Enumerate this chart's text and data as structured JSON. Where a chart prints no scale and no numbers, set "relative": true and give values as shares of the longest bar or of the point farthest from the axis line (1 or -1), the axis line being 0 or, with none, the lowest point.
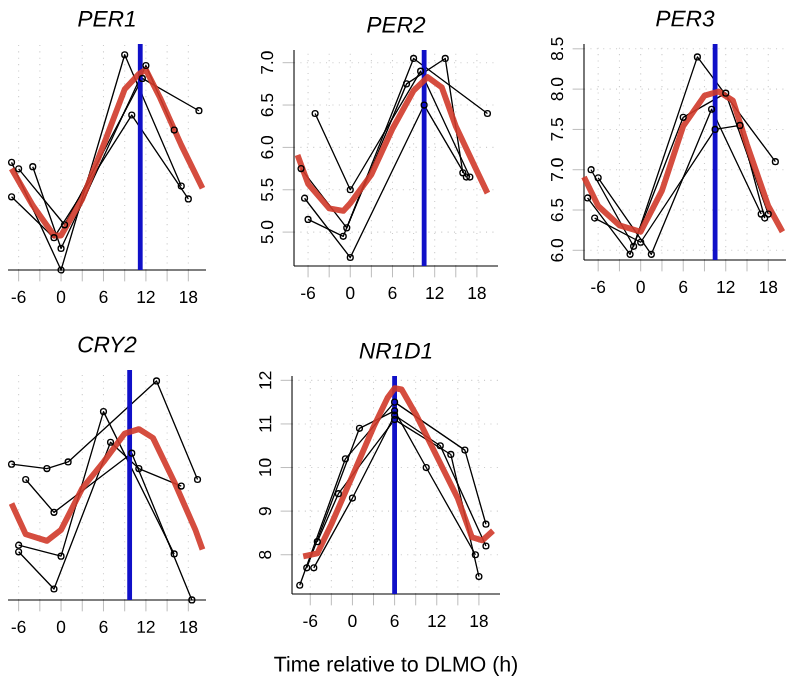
{
  "chart_data": [
    {
      "type": "line",
      "title": "PER1",
      "relative": true,
      "grid": "x",
      "xlim": [
        -7.5,
        20.5
      ],
      "xticks": [
        {
          "value": -6,
          "label": "-6"
        },
        {
          "value": -3,
          "label": null
        },
        {
          "value": 0,
          "label": "0"
        },
        {
          "value": 3,
          "label": null
        },
        {
          "value": 6,
          "label": "6"
        },
        {
          "value": 9,
          "label": null
        },
        {
          "value": 12,
          "label": "12"
        },
        {
          "value": 15,
          "label": null
        },
        {
          "value": 18,
          "label": "18"
        }
      ],
      "ref_lines": [
        {
          "axis": "x",
          "value": 11.2,
          "color": "#1010c8"
        }
      ],
      "series": [
        {
          "color": "#000000",
          "marker": "circle",
          "x": [
            -7,
            0,
            9,
            17
          ],
          "values": [
            0.5,
            0,
            1,
            0.39
          ]
        },
        {
          "color": "#000000",
          "marker": "circle",
          "x": [
            -6,
            0.5,
            11.5,
            19.5
          ],
          "values": [
            0.47,
            0.21,
            0.89,
            0.74
          ]
        },
        {
          "color": "#000000",
          "marker": "circle",
          "x": [
            -7,
            -1,
            10,
            18
          ],
          "values": [
            0.34,
            0.15,
            0.72,
            0.33
          ]
        },
        {
          "color": "#000000",
          "marker": "circle",
          "x": [
            -4,
            0,
            12,
            16
          ],
          "values": [
            0.48,
            0.1,
            0.95,
            0.65
          ]
        },
        {
          "color": "#d03a2a",
          "marker": "none",
          "x": [
            -7,
            -4,
            -1,
            0,
            3,
            6,
            9,
            11,
            12,
            14,
            17,
            20
          ],
          "values": [
            0.47,
            0.3,
            0.16,
            0.16,
            0.33,
            0.58,
            0.84,
            0.91,
            0.93,
            0.8,
            0.58,
            0.38
          ]
        }
      ]
    },
    {
      "type": "line",
      "title": "PER2",
      "grid": true,
      "xlim": [
        -8,
        21
      ],
      "ylim": [
        4.6,
        7.15
      ],
      "xticks": [
        {
          "value": -6,
          "label": "-6"
        },
        {
          "value": -3,
          "label": null
        },
        {
          "value": 0,
          "label": "0"
        },
        {
          "value": 3,
          "label": null
        },
        {
          "value": 6,
          "label": "6"
        },
        {
          "value": 9,
          "label": null
        },
        {
          "value": 12,
          "label": "12"
        },
        {
          "value": 15,
          "label": null
        },
        {
          "value": 18,
          "label": "18"
        }
      ],
      "yticks": [
        {
          "value": 5,
          "label": "5.0"
        },
        {
          "value": 5.5,
          "label": "5.5"
        },
        {
          "value": 6,
          "label": "6.0"
        },
        {
          "value": 6.5,
          "label": "6.5"
        },
        {
          "value": 7,
          "label": "7.0"
        }
      ],
      "ref_lines": [
        {
          "axis": "x",
          "value": 10.5,
          "color": "#1010c8"
        }
      ],
      "series": [
        {
          "color": "#000000",
          "marker": "circle",
          "x": [
            -5,
            0,
            10,
            17
          ],
          "values": [
            6.4,
            5.5,
            6.9,
            5.65
          ]
        },
        {
          "color": "#000000",
          "marker": "circle",
          "x": [
            -7,
            -0.5,
            9,
            19.5
          ],
          "values": [
            5.75,
            5.05,
            7.05,
            6.4
          ]
        },
        {
          "color": "#000000",
          "marker": "circle",
          "x": [
            -6.5,
            0,
            10.5,
            16.5
          ],
          "values": [
            5.4,
            4.7,
            6.5,
            5.65
          ]
        },
        {
          "color": "#000000",
          "marker": "circle",
          "x": [
            -6,
            -1,
            8,
            13.5,
            16
          ],
          "values": [
            5.15,
            4.95,
            6.75,
            7.05,
            5.7
          ]
        },
        {
          "color": "#d03a2a",
          "marker": "none",
          "x": [
            -7.5,
            -6,
            -3,
            -1,
            0,
            3,
            6,
            9,
            11,
            13,
            15,
            18,
            19.5
          ],
          "values": [
            5.91,
            5.57,
            5.28,
            5.25,
            5.34,
            5.68,
            6.22,
            6.67,
            6.83,
            6.71,
            6.25,
            5.72,
            5.46
          ]
        }
      ]
    },
    {
      "type": "line",
      "title": "PER3",
      "grid": true,
      "xlim": [
        -8,
        20.5
      ],
      "ylim": [
        5.88,
        8.56
      ],
      "xticks": [
        {
          "value": -6,
          "label": "-6"
        },
        {
          "value": -3,
          "label": null
        },
        {
          "value": 0,
          "label": "0"
        },
        {
          "value": 3,
          "label": null
        },
        {
          "value": 6,
          "label": "6"
        },
        {
          "value": 9,
          "label": null
        },
        {
          "value": 12,
          "label": "12"
        },
        {
          "value": 15,
          "label": null
        },
        {
          "value": 18,
          "label": "18"
        }
      ],
      "yticks": [
        {
          "value": 6,
          "label": "6.0"
        },
        {
          "value": 6.5,
          "label": "6.5"
        },
        {
          "value": 7,
          "label": "7.0"
        },
        {
          "value": 7.5,
          "label": "7.5"
        },
        {
          "value": 8,
          "label": "8.0"
        },
        {
          "value": 8.5,
          "label": "8.5"
        }
      ],
      "ref_lines": [
        {
          "axis": "x",
          "value": 10.5,
          "color": "#1010c8"
        }
      ],
      "series": [
        {
          "color": "#000000",
          "marker": "circle",
          "x": [
            -7,
            -1,
            8,
            19
          ],
          "values": [
            7.0,
            6.05,
            8.4,
            7.1
          ]
        },
        {
          "color": "#000000",
          "marker": "circle",
          "x": [
            -6,
            1.5,
            10,
            17
          ],
          "values": [
            6.9,
            5.95,
            7.75,
            6.45
          ]
        },
        {
          "color": "#000000",
          "marker": "circle",
          "x": [
            -7.5,
            -1.5,
            6,
            12,
            18
          ],
          "values": [
            6.65,
            5.95,
            7.65,
            7.95,
            6.45
          ]
        },
        {
          "color": "#000000",
          "marker": "circle",
          "x": [
            -6.5,
            0,
            10.5,
            14,
            17.5
          ],
          "values": [
            6.4,
            6.1,
            7.5,
            7.55,
            6.4
          ]
        },
        {
          "color": "#d03a2a",
          "marker": "none",
          "x": [
            -8,
            -6,
            -3,
            0,
            3,
            6,
            9,
            11,
            13,
            15,
            18,
            20
          ],
          "values": [
            6.91,
            6.55,
            6.31,
            6.23,
            6.74,
            7.54,
            7.92,
            7.97,
            7.86,
            7.31,
            6.55,
            6.23
          ]
        }
      ]
    },
    {
      "type": "line",
      "title": "CRY2",
      "relative": true,
      "grid": "x",
      "xlim": [
        -7.5,
        20.5
      ],
      "xticks": [
        {
          "value": -6,
          "label": "-6"
        },
        {
          "value": -3,
          "label": null
        },
        {
          "value": 0,
          "label": "0"
        },
        {
          "value": 3,
          "label": null
        },
        {
          "value": 6,
          "label": "6"
        },
        {
          "value": 9,
          "label": null
        },
        {
          "value": 12,
          "label": "12"
        },
        {
          "value": 15,
          "label": null
        },
        {
          "value": 18,
          "label": "18"
        }
      ],
      "ref_lines": [
        {
          "axis": "x",
          "value": 9.7,
          "color": "#1010c8"
        }
      ],
      "series": [
        {
          "color": "#000000",
          "marker": "circle",
          "x": [
            -7,
            -2,
            1,
            13.5,
            19.3
          ],
          "values": [
            0.62,
            0.6,
            0.63,
            1,
            0.55
          ]
        },
        {
          "color": "#000000",
          "marker": "circle",
          "x": [
            -6,
            0,
            6,
            16
          ],
          "values": [
            0.25,
            0.2,
            0.86,
            0.21
          ]
        },
        {
          "color": "#000000",
          "marker": "circle",
          "x": [
            -5,
            -1,
            10,
            18.5
          ],
          "values": [
            0.55,
            0.4,
            0.67,
            0
          ]
        },
        {
          "color": "#000000",
          "marker": "circle",
          "x": [
            -6,
            -1,
            7,
            11,
            17
          ],
          "values": [
            0.22,
            0.05,
            0.72,
            0.6,
            0.52
          ]
        },
        {
          "color": "#d03a2a",
          "marker": "none",
          "x": [
            -7,
            -5,
            -2,
            0,
            3,
            6,
            9,
            11,
            13,
            16,
            19,
            20
          ],
          "values": [
            0.44,
            0.3,
            0.27,
            0.32,
            0.51,
            0.63,
            0.76,
            0.78,
            0.74,
            0.54,
            0.32,
            0.23
          ]
        }
      ]
    },
    {
      "type": "line",
      "title": "NR1D1",
      "xlabel": "Time relative to DLMO (h)",
      "grid": true,
      "xlim": [
        -8.6,
        21
      ],
      "ylim": [
        7.1,
        12.1
      ],
      "xticks": [
        {
          "value": -6,
          "label": "-6"
        },
        {
          "value": -3,
          "label": null
        },
        {
          "value": 0,
          "label": "0"
        },
        {
          "value": 3,
          "label": null
        },
        {
          "value": 6,
          "label": "6"
        },
        {
          "value": 9,
          "label": null
        },
        {
          "value": 12,
          "label": "12"
        },
        {
          "value": 15,
          "label": null
        },
        {
          "value": 18,
          "label": "18"
        }
      ],
      "yticks": [
        8,
        9,
        10,
        11,
        12
      ],
      "ref_lines": [
        {
          "axis": "x",
          "value": 6,
          "color": "#1010c8"
        }
      ],
      "series": [
        {
          "color": "#000000",
          "marker": "circle",
          "x": [
            -7.5,
            -1,
            6,
            16,
            19
          ],
          "values": [
            7.3,
            10.2,
            11.5,
            10.4,
            8.7
          ]
        },
        {
          "color": "#000000",
          "marker": "circle",
          "x": [
            -6.5,
            1,
            6,
            10.5,
            17.5
          ],
          "values": [
            7.7,
            10.9,
            11.3,
            10.0,
            8.0
          ]
        },
        {
          "color": "#000000",
          "marker": "circle",
          "x": [
            -5,
            -2,
            6,
            14,
            18
          ],
          "values": [
            8.3,
            9.4,
            11.1,
            10.3,
            7.5
          ]
        },
        {
          "color": "#000000",
          "marker": "circle",
          "x": [
            -5.5,
            0,
            6,
            12.5,
            19
          ],
          "values": [
            7.7,
            9.3,
            11.2,
            10.5,
            8.2
          ]
        },
        {
          "color": "#d03a2a",
          "marker": "none",
          "x": [
            -7,
            -5,
            -3,
            0,
            3,
            5,
            6,
            7,
            9,
            12,
            15,
            17,
            18.5,
            20
          ],
          "values": [
            7.96,
            8.03,
            8.7,
            9.81,
            10.93,
            11.6,
            11.82,
            11.79,
            11.23,
            10.26,
            9.29,
            8.4,
            8.33,
            8.55
          ]
        }
      ]
    }
  ]
}
